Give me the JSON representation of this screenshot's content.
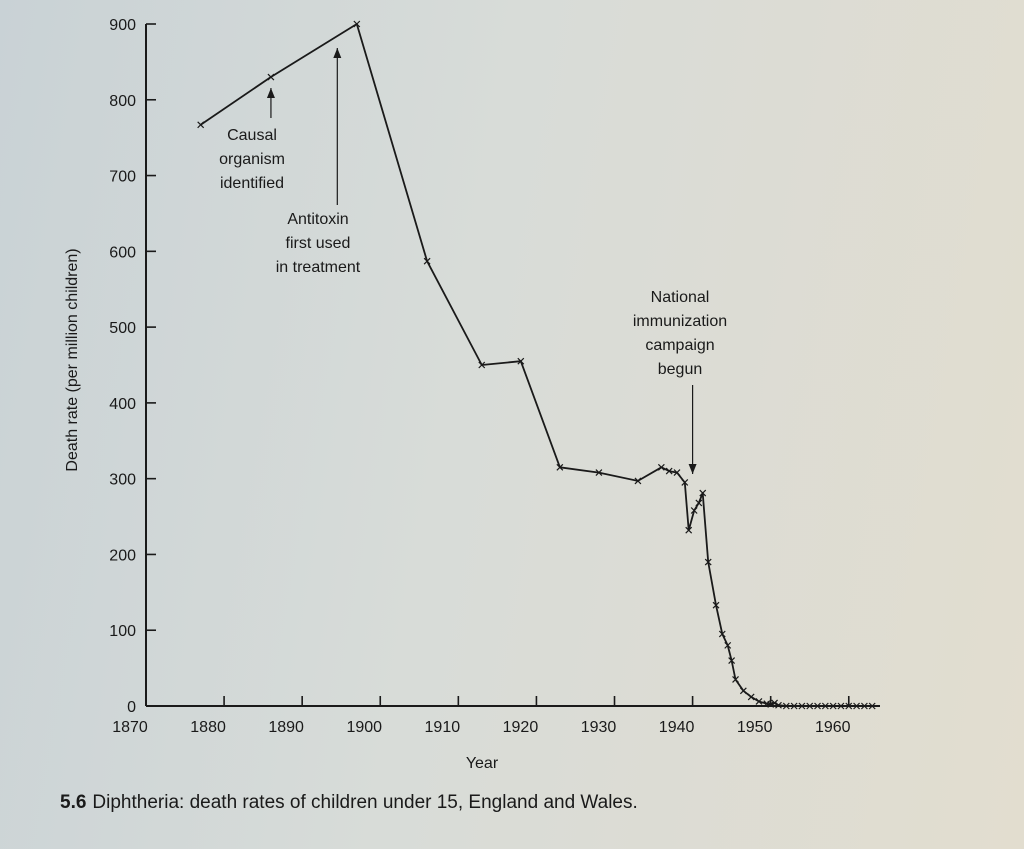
{
  "chart_data": {
    "type": "line",
    "title": "",
    "xlabel": "Year",
    "ylabel": "Death rate (per million children)",
    "xlim": [
      1870,
      1964
    ],
    "ylim": [
      0,
      900
    ],
    "x_ticks": [
      1870,
      1880,
      1890,
      1900,
      1910,
      1920,
      1930,
      1940,
      1950,
      1960
    ],
    "y_ticks": [
      0,
      100,
      200,
      300,
      400,
      500,
      600,
      700,
      800,
      900
    ],
    "grid": false,
    "legend": "none",
    "series": [
      {
        "marker": "x",
        "points": [
          [
            1877,
            767
          ],
          [
            1886,
            830
          ],
          [
            1897,
            900
          ],
          [
            1906,
            587
          ],
          [
            1913,
            450
          ],
          [
            1918,
            455
          ],
          [
            1923,
            315
          ],
          [
            1928,
            308
          ],
          [
            1933,
            297
          ],
          [
            1936,
            315
          ],
          [
            1937,
            310
          ],
          [
            1938,
            308
          ],
          [
            1939,
            295
          ],
          [
            1939.5,
            232
          ],
          [
            1940.2,
            258
          ],
          [
            1940.8,
            268
          ],
          [
            1941.3,
            281
          ],
          [
            1942,
            190
          ],
          [
            1943,
            133
          ],
          [
            1943.8,
            95
          ],
          [
            1944.5,
            80
          ],
          [
            1945,
            60
          ],
          [
            1945.5,
            35
          ],
          [
            1946.5,
            20
          ],
          [
            1947.5,
            12
          ],
          [
            1948.5,
            6
          ],
          [
            1949.5,
            3
          ],
          [
            1950,
            2
          ],
          [
            1950.5,
            4
          ],
          [
            1951,
            1
          ],
          [
            1952,
            0
          ],
          [
            1953,
            0
          ],
          [
            1954,
            0
          ],
          [
            1955,
            0
          ],
          [
            1956,
            0
          ],
          [
            1957,
            0
          ],
          [
            1958,
            0
          ],
          [
            1959,
            0
          ],
          [
            1960,
            0
          ],
          [
            1961,
            0
          ],
          [
            1962,
            0
          ],
          [
            1963,
            0
          ]
        ]
      }
    ],
    "annotations": [
      {
        "lines": [
          "Causal",
          "organism",
          "identified"
        ],
        "x": 1886,
        "y": 830
      },
      {
        "lines": [
          "Antitoxin",
          "first used",
          "in treatment"
        ],
        "x": 1894.5,
        "y": 870
      },
      {
        "lines": [
          "National",
          "immunization",
          "campaign",
          "begun"
        ],
        "x": 1940,
        "y": 310
      }
    ]
  },
  "caption": {
    "number": "5.6",
    "text": "Diphtheria: death rates of children under 15, England and Wales."
  }
}
